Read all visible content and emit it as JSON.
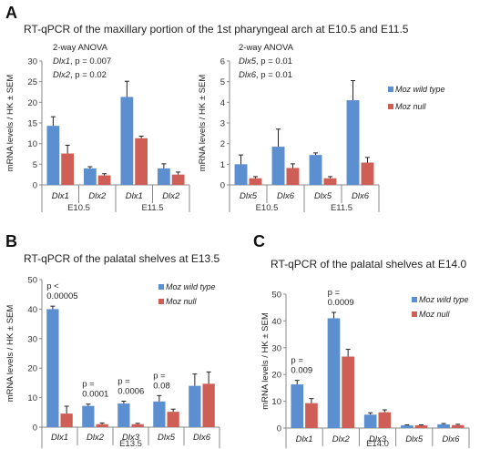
{
  "colors": {
    "wild_type": "#5b8fd0",
    "null": "#cf5e56",
    "axis": "#8a8a8a",
    "error": "#222222"
  },
  "panels": [
    {
      "letter": "A",
      "title": "RT-qPCR of the maxillary portion of the 1st pharyngeal arch at E10.5 and E11.5"
    },
    {
      "letter": "B",
      "title": "RT-qPCR of the palatal shelves at E13.5"
    },
    {
      "letter": "C",
      "title": "RT-qPCR of the palatal shelves at E14.0"
    }
  ],
  "chart_data": [
    {
      "id": "A-left",
      "type": "bar",
      "ylabel": "mRNA levels / HK ± SEM",
      "ylim": [
        0,
        30
      ],
      "yticks": [
        0,
        5,
        10,
        15,
        20,
        25,
        30
      ],
      "grid": false,
      "categories": [
        "Dlx1",
        "Dlx2",
        "Dlx1",
        "Dlx2"
      ],
      "groups": [
        {
          "label": "E10.5",
          "span": [
            0,
            1
          ]
        },
        {
          "label": "E11.5",
          "span": [
            2,
            3
          ]
        }
      ],
      "series": [
        {
          "name": "",
          "color_key": "wild_type",
          "values": [
            14.3,
            4.0,
            21.3,
            4.0
          ],
          "errors": [
            2.2,
            0.4,
            3.8,
            1.1
          ]
        },
        {
          "name": "",
          "color_key": "null",
          "values": [
            7.6,
            2.3,
            11.3,
            2.5
          ],
          "errors": [
            2.0,
            0.4,
            0.5,
            0.6
          ]
        }
      ],
      "stats_lines": [
        "2-way ANOVA",
        "Dlx1, p = 0.007",
        "Dlx2, p = 0.02"
      ],
      "point_annotations": []
    },
    {
      "id": "A-right",
      "type": "bar",
      "ylabel": "mRNA levels / HK ± SEM",
      "ylim": [
        0,
        6
      ],
      "yticks": [
        0,
        1,
        2,
        3,
        4,
        5,
        6
      ],
      "grid": false,
      "categories": [
        "Dlx5",
        "Dlx6",
        "Dlx5",
        "Dlx6"
      ],
      "groups": [
        {
          "label": "E10.5",
          "span": [
            0,
            1
          ]
        },
        {
          "label": "E11.5",
          "span": [
            2,
            3
          ]
        }
      ],
      "series": [
        {
          "name": "Moz wild type",
          "color_key": "wild_type",
          "values": [
            1.0,
            1.85,
            1.45,
            4.1
          ],
          "errors": [
            0.45,
            0.85,
            0.1,
            0.95
          ]
        },
        {
          "name": "Moz null",
          "color_key": "null",
          "values": [
            0.32,
            0.82,
            0.32,
            1.08
          ],
          "errors": [
            0.08,
            0.2,
            0.08,
            0.25
          ]
        }
      ],
      "stats_lines": [
        "2-way ANOVA",
        "Dlx5, p = 0.01",
        "Dlx6, p = 0.01"
      ],
      "legend_position": "right",
      "point_annotations": []
    },
    {
      "id": "B",
      "type": "bar",
      "ylabel": "mRNA levels / HK ± SEM",
      "ylim": [
        0,
        50
      ],
      "yticks": [
        0,
        10,
        20,
        30,
        40,
        50
      ],
      "grid": false,
      "categories": [
        "Dlx1",
        "Dlx2",
        "Dlx3",
        "Dlx5",
        "Dlx6"
      ],
      "groups": [
        {
          "label": "E13.5",
          "span": [
            0,
            4
          ]
        }
      ],
      "series": [
        {
          "name": "Moz wild type",
          "color_key": "wild_type",
          "values": [
            40.0,
            7.2,
            8.0,
            8.7,
            14.0
          ],
          "errors": [
            1.0,
            0.6,
            0.8,
            2.0,
            4.0
          ]
        },
        {
          "name": "Moz null",
          "color_key": "null",
          "values": [
            4.6,
            1.0,
            1.0,
            5.2,
            14.7
          ],
          "errors": [
            2.5,
            0.4,
            0.3,
            0.9,
            4.0
          ]
        }
      ],
      "legend_position": "top-right",
      "point_annotations": [
        {
          "category": 0,
          "lines": [
            "p <",
            "0.00005"
          ]
        },
        {
          "category": 1,
          "lines": [
            "p =",
            "0.0001"
          ]
        },
        {
          "category": 2,
          "lines": [
            "p =",
            "0.0006"
          ]
        },
        {
          "category": 3,
          "lines": [
            "p =",
            "0.08"
          ]
        }
      ]
    },
    {
      "id": "C",
      "type": "bar",
      "ylabel": "mRNA levels / HK ± SEM",
      "ylim": [
        0,
        50
      ],
      "yticks": [
        0,
        10,
        20,
        30,
        40,
        50
      ],
      "grid": false,
      "categories": [
        "Dlx1",
        "Dlx2",
        "Dlx3",
        "Dlx5",
        "Dlx6"
      ],
      "groups": [
        {
          "label": "E14.0",
          "span": [
            0,
            4
          ]
        }
      ],
      "series": [
        {
          "name": "Moz wild type",
          "color_key": "wild_type",
          "values": [
            16.3,
            41.0,
            5.0,
            1.0,
            1.4
          ],
          "errors": [
            1.5,
            2.2,
            0.7,
            0.2,
            0.3
          ]
        },
        {
          "name": "Moz null",
          "color_key": "null",
          "values": [
            9.3,
            26.7,
            5.9,
            1.0,
            1.1
          ],
          "errors": [
            1.7,
            2.7,
            0.9,
            0.2,
            0.3
          ]
        }
      ],
      "legend_position": "top-right",
      "point_annotations": [
        {
          "category": 0,
          "lines": [
            "p =",
            "0.009"
          ]
        },
        {
          "category": 1,
          "lines": [
            "p =",
            "0.0009"
          ]
        }
      ]
    }
  ]
}
